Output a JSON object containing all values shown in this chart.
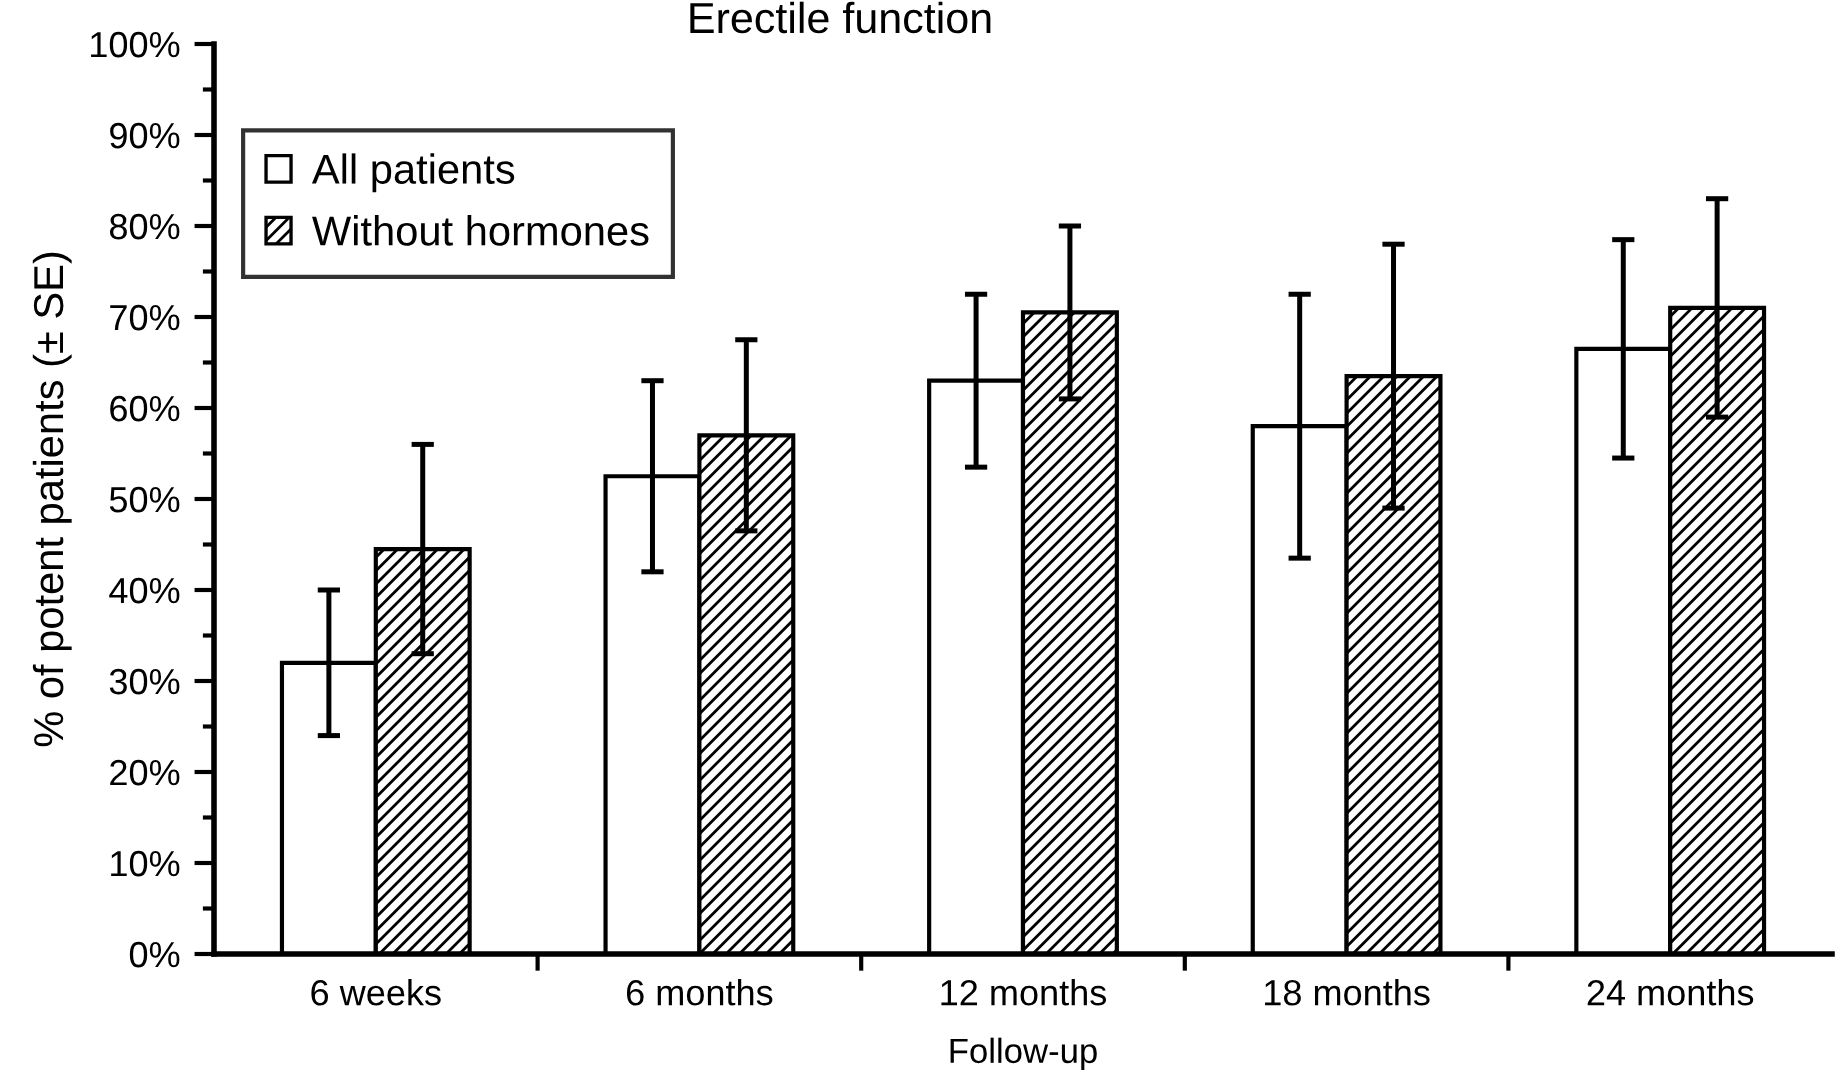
{
  "chart_data": {
    "type": "bar",
    "title": "Erectile function",
    "xlabel": "Follow-up",
    "ylabel": "% of potent patients (± SE)",
    "categories": [
      "6 weeks",
      "6 months",
      "12 months",
      "18 months",
      "24 months"
    ],
    "series": [
      {
        "name": "All patients",
        "color": "#ffffff",
        "values": [
          32,
          52.5,
          63,
          58,
          66.5
        ],
        "errors": [
          8,
          10.5,
          9.5,
          14.5,
          12
        ]
      },
      {
        "name": "Without hormones",
        "color": "#000000",
        "values": [
          44.5,
          57,
          70.5,
          63.5,
          71
        ],
        "errors": [
          11.5,
          10.5,
          9.5,
          14.5,
          12
        ]
      }
    ],
    "ylim": [
      0,
      100
    ],
    "yticks": [
      {
        "value": 0,
        "label": "0%"
      },
      {
        "value": 5,
        "label": null
      },
      {
        "value": 10,
        "label": "10%"
      },
      {
        "value": 15,
        "label": null
      },
      {
        "value": 20,
        "label": "20%"
      },
      {
        "value": 25,
        "label": null
      },
      {
        "value": 30,
        "label": "30%"
      },
      {
        "value": 35,
        "label": null
      },
      {
        "value": 40,
        "label": "40%"
      },
      {
        "value": 45,
        "label": null
      },
      {
        "value": 50,
        "label": "50%"
      },
      {
        "value": 55,
        "label": null
      },
      {
        "value": 60,
        "label": "60%"
      },
      {
        "value": 65,
        "label": null
      },
      {
        "value": 70,
        "label": "70%"
      },
      {
        "value": 75,
        "label": null
      },
      {
        "value": 80,
        "label": "80%"
      },
      {
        "value": 85,
        "label": null
      },
      {
        "value": 90,
        "label": "90%"
      },
      {
        "value": 95,
        "label": null
      },
      {
        "value": 100,
        "label": "100%"
      }
    ],
    "legend": "top left"
  }
}
